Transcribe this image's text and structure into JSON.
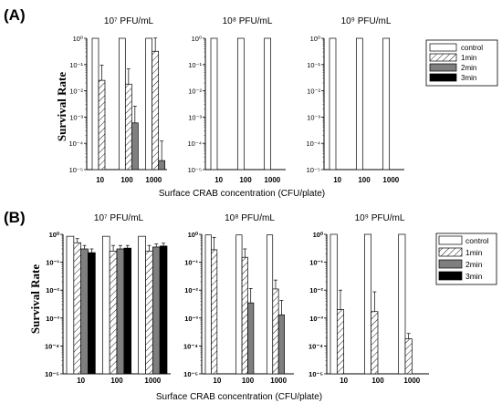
{
  "colors": {
    "control": "#ffffff",
    "1min": "#ffffff",
    "2min": "#7f7f7f",
    "3min": "#000000",
    "text_dark": "#000000",
    "text_purple": "#5a3a7a"
  },
  "legend": {
    "placement": "right",
    "entries": [
      {
        "key": "control",
        "label": "control",
        "pattern": "empty"
      },
      {
        "key": "1min",
        "label": "1min",
        "pattern": "hatch"
      },
      {
        "key": "2min",
        "label": "2min",
        "pattern": "gray"
      },
      {
        "key": "3min",
        "label": "3min",
        "pattern": "black"
      }
    ]
  },
  "chart_data": [
    {
      "panel": "(A)",
      "type": "bar",
      "ylabel": "Survival Rate",
      "xlabel": "Surface CRAB concentration (CFU/plate)",
      "yscale": "log",
      "ylim": [
        1e-05,
        1
      ],
      "ytick_labels": [
        "10⁰",
        "10⁻¹",
        "10⁻²",
        "10⁻³",
        "10⁻⁴",
        "10⁻⁵"
      ],
      "categories": [
        "10",
        "100",
        "1000"
      ],
      "subplots": [
        {
          "title": "10⁷ PFU/mL",
          "series": [
            {
              "key": "control",
              "values": [
                1,
                1,
                1
              ],
              "errors": [
                null,
                null,
                null
              ]
            },
            {
              "key": "1min",
              "values": [
                0.025,
                0.018,
                0.32
              ],
              "errors": [
                0.07,
                0.05,
                0.7
              ]
            },
            {
              "key": "2min",
              "values": [
                null,
                0.0006,
                2.2e-05
              ],
              "errors": [
                null,
                0.002,
                0.0001
              ]
            },
            {
              "key": "3min",
              "values": [
                null,
                null,
                null
              ],
              "errors": [
                null,
                null,
                null
              ]
            }
          ]
        },
        {
          "title": "10⁸ PFU/mL",
          "series": [
            {
              "key": "control",
              "values": [
                1,
                1,
                1
              ],
              "errors": [
                null,
                null,
                null
              ]
            },
            {
              "key": "1min",
              "values": [
                null,
                null,
                null
              ],
              "errors": [
                null,
                null,
                null
              ]
            },
            {
              "key": "2min",
              "values": [
                null,
                null,
                null
              ],
              "errors": [
                null,
                null,
                null
              ]
            },
            {
              "key": "3min",
              "values": [
                null,
                null,
                null
              ],
              "errors": [
                null,
                null,
                null
              ]
            }
          ]
        },
        {
          "title": "10⁹ PFU/mL",
          "series": [
            {
              "key": "control",
              "values": [
                1,
                1,
                1
              ],
              "errors": [
                null,
                null,
                null
              ]
            },
            {
              "key": "1min",
              "values": [
                null,
                null,
                null
              ],
              "errors": [
                null,
                null,
                null
              ]
            },
            {
              "key": "2min",
              "values": [
                null,
                null,
                null
              ],
              "errors": [
                null,
                null,
                null
              ]
            },
            {
              "key": "3min",
              "values": [
                null,
                null,
                null
              ],
              "errors": [
                null,
                null,
                null
              ]
            }
          ]
        }
      ]
    },
    {
      "panel": "(B)",
      "type": "bar",
      "ylabel": "Survival Rate",
      "xlabel": "Surface CRAB concentration (CFU/plate)",
      "yscale": "log",
      "ylim": [
        1e-05,
        1
      ],
      "ytick_labels": [
        "10⁰",
        "10⁻¹",
        "10⁻²",
        "10⁻³",
        "10⁻⁴",
        "10⁻⁵"
      ],
      "categories": [
        "10",
        "100",
        "1000"
      ],
      "subplots": [
        {
          "title": "10⁷ PFU/mL",
          "series": [
            {
              "key": "control",
              "values": [
                0.85,
                0.85,
                0.85
              ],
              "errors": [
                null,
                null,
                null
              ]
            },
            {
              "key": "1min",
              "values": [
                0.5,
                0.25,
                0.25
              ],
              "errors": [
                0.2,
                0.15,
                0.15
              ]
            },
            {
              "key": "2min",
              "values": [
                0.3,
                0.3,
                0.35
              ],
              "errors": [
                0.1,
                0.1,
                0.1
              ]
            },
            {
              "key": "3min",
              "values": [
                0.22,
                0.32,
                0.38
              ],
              "errors": [
                0.08,
                0.08,
                0.1
              ]
            }
          ]
        },
        {
          "title": "10⁸ PFU/mL",
          "series": [
            {
              "key": "control",
              "values": [
                0.95,
                0.95,
                0.95
              ],
              "errors": [
                null,
                null,
                null
              ]
            },
            {
              "key": "1min",
              "values": [
                0.28,
                0.15,
                0.011
              ],
              "errors": [
                0.5,
                0.15,
                0.012
              ]
            },
            {
              "key": "2min",
              "values": [
                null,
                0.0035,
                0.0013
              ],
              "errors": [
                null,
                0.008,
                0.003
              ]
            },
            {
              "key": "3min",
              "values": [
                null,
                null,
                null
              ],
              "errors": [
                null,
                null,
                null
              ]
            }
          ]
        },
        {
          "title": "10⁹ PFU/mL",
          "series": [
            {
              "key": "control",
              "values": [
                1,
                1,
                1
              ],
              "errors": [
                null,
                null,
                null
              ]
            },
            {
              "key": "1min",
              "values": [
                0.002,
                0.0017,
                0.00018
              ],
              "errors": [
                0.008,
                0.007,
                0.0001
              ]
            },
            {
              "key": "2min",
              "values": [
                null,
                null,
                null
              ],
              "errors": [
                null,
                null,
                null
              ]
            },
            {
              "key": "3min",
              "values": [
                null,
                null,
                null
              ],
              "errors": [
                null,
                null,
                null
              ]
            }
          ]
        }
      ]
    }
  ]
}
